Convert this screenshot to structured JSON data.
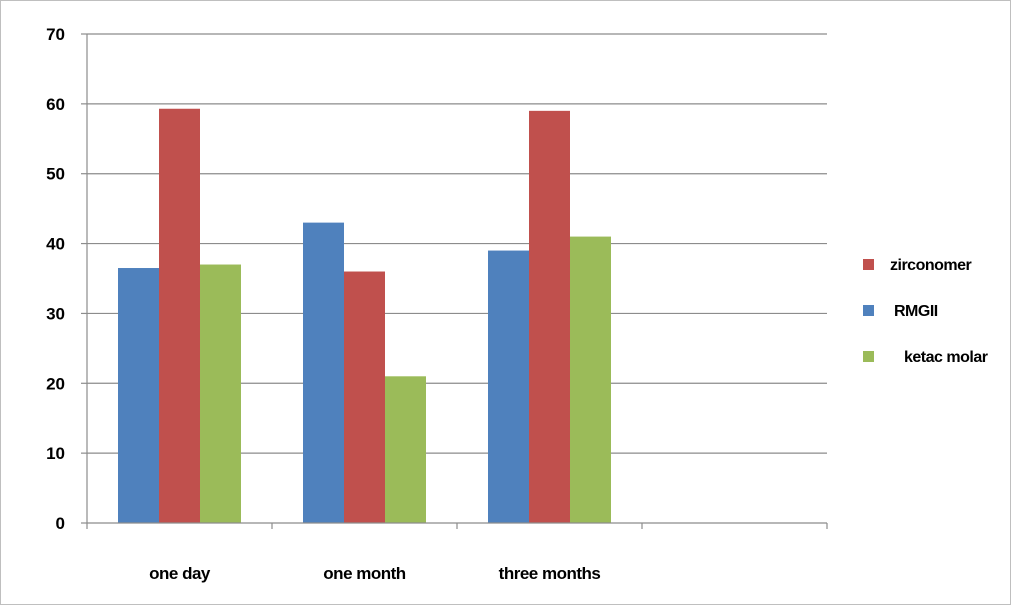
{
  "chart_data": {
    "type": "bar",
    "categories": [
      "one day",
      "one month",
      "three months",
      ""
    ],
    "series": [
      {
        "name": "RMGII",
        "color": "#4f81bd",
        "values": [
          36.5,
          43,
          39,
          null
        ]
      },
      {
        "name": "zirconomer",
        "color": "#c0504d",
        "values": [
          59.3,
          36,
          59,
          null
        ]
      },
      {
        "name": "ketac molar",
        "color": "#9bbb59",
        "values": [
          37,
          21,
          41,
          null
        ]
      }
    ],
    "legend_order": [
      "zirconomer",
      "RMGII",
      "ketac molar"
    ],
    "title": "",
    "xlabel": "",
    "ylabel": "",
    "ylim": [
      0,
      70
    ],
    "yticks": [
      "0",
      "10",
      "20",
      "30",
      "40",
      "50",
      "60",
      "70"
    ],
    "grid": true,
    "legend_position": "right"
  }
}
